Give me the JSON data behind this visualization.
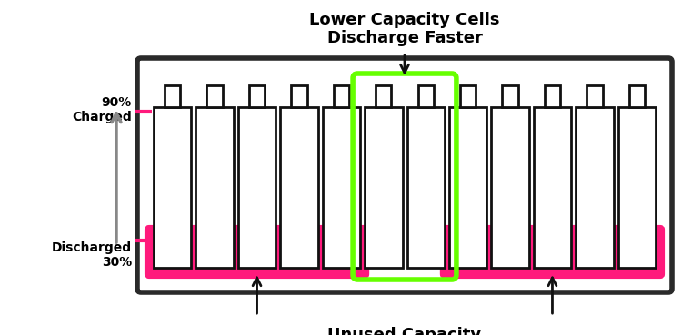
{
  "title_line1": "Lower Capacity Cells",
  "title_line2": "Discharge Faster",
  "label_charged": "90%\nCharged",
  "label_discharged": "Discharged\n30%",
  "label_unused": "Unused Capacity",
  "num_cells": 12,
  "highlight_cells": [
    5,
    6
  ],
  "bg_color": "#ffffff",
  "pack_border": "#2a2a2a",
  "pack_fill": "#ffffff",
  "cell_border": "#111111",
  "cell_fill": "#ffffff",
  "cyan_fill": "#29b8d8",
  "pink_color": "#ff1a7c",
  "green_color": "#66ff00",
  "arrow_black": "#111111",
  "arrow_gray": "#888888",
  "text_color": "#000000",
  "pack_lw": 4,
  "cell_lw": 2,
  "green_lw": 4,
  "pink_lw": 3
}
